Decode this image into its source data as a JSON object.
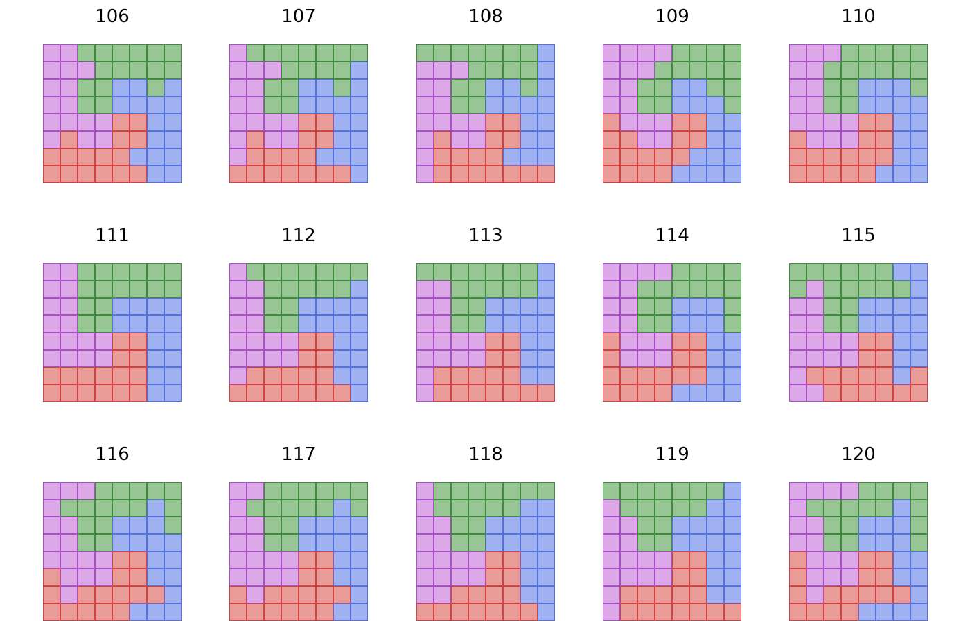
{
  "colors": {
    "P": {
      "fill": "#DDA8E8",
      "stroke": "#A84FC8"
    },
    "G": {
      "fill": "#97C593",
      "stroke": "#3F8A3C"
    },
    "B": {
      "fill": "#A0B1F2",
      "stroke": "#5570E0"
    },
    "R": {
      "fill": "#E89B97",
      "stroke": "#D24040"
    }
  },
  "panels": [
    {
      "title": "106",
      "grid": [
        "PPGGGGGG",
        "PPPGGGGG",
        "PPGGBBGB",
        "PPGGBBBB",
        "PPPPRRBB",
        "PRPPRRBB",
        "RRRRRBBB",
        "RRRRRRBB"
      ]
    },
    {
      "title": "107",
      "grid": [
        "PGGGGGGG",
        "PPPGGGGB",
        "PPGGBBGB",
        "PPGGBBBB",
        "PPPPRRBB",
        "PRPPRRBB",
        "PRRRRBBB",
        "RRRRRRRB"
      ]
    },
    {
      "title": "108",
      "grid": [
        "GGGGGGGB",
        "PPPGGGGB",
        "PPGGBBGB",
        "PPGGBBBB",
        "PPPPRRBB",
        "PRPPRRBB",
        "PRRRRBBB",
        "PRRRRRRR"
      ]
    },
    {
      "title": "109",
      "grid": [
        "PPPPGGGG",
        "PPPGGGGG",
        "PPGGBBGG",
        "PPGGBBBG",
        "RPPPRRBB",
        "RRPPRRBB",
        "RRRRRBBB",
        "RRRRBBBB"
      ]
    },
    {
      "title": "110",
      "grid": [
        "PPPGGGGG",
        "PPGGGGGG",
        "PPGGBBBG",
        "PPGGBBBB",
        "PPPPRRBB",
        "RPPPRRBB",
        "RRRRRRBB",
        "RRRRRBBB"
      ]
    },
    {
      "title": "111",
      "grid": [
        "PPGGGGGG",
        "PPGGGGGG",
        "PPGGBBBB",
        "PPGGBBBB",
        "PPPPRRBB",
        "PPPPRRBB",
        "RRRRRRBB",
        "RRRRRRBB"
      ]
    },
    {
      "title": "112",
      "grid": [
        "PGGGGGGG",
        "PPGGGGGB",
        "PPGGBBBB",
        "PPGGBBBB",
        "PPPPRRBB",
        "PPPPRRBB",
        "PRRRRRBB",
        "RRRRRRRB"
      ]
    },
    {
      "title": "113",
      "grid": [
        "GGGGGGGB",
        "PPGGGGGB",
        "PPGGBBBB",
        "PPGGBBBB",
        "PPPPRRBB",
        "PPPPRRBB",
        "PRRRRRBB",
        "PRRRRRRR"
      ]
    },
    {
      "title": "114",
      "grid": [
        "PPPPGGGG",
        "PPGGGGGG",
        "PPGGBBBG",
        "PPGGBBBG",
        "RPPPRRBB",
        "RPPPRRBB",
        "RRRRRRBB",
        "RRRRBBBB"
      ]
    },
    {
      "title": "115",
      "grid": [
        "GGGGGGBB",
        "GPGGGGGB",
        "PPGGBBBB",
        "PPGGBBBB",
        "PPPPRRBB",
        "PPPPRRBB",
        "PRRRRRBR",
        "PPRRRRRR"
      ]
    },
    {
      "title": "116",
      "grid": [
        "PPPGGGGG",
        "PGGGGGBG",
        "PPGGBBBG",
        "PPGGBBBB",
        "PPPPRRBB",
        "RPPPRRBB",
        "RPRRRRRB",
        "RRRRRBBB"
      ]
    },
    {
      "title": "117",
      "grid": [
        "PPGGGGGG",
        "PGGGGGBG",
        "PPGGBBBB",
        "PPGGBBBB",
        "PPPPRRBB",
        "PPPPRRBB",
        "RPRRRRRB",
        "RRRRRRBB"
      ]
    },
    {
      "title": "118",
      "grid": [
        "PGGGGGGG",
        "PGGGGGBB",
        "PPGGBBBB",
        "PPGGBBBB",
        "PPPPRRBB",
        "PPPPRRBB",
        "PPRRRRBB",
        "RRRRRRRB"
      ]
    },
    {
      "title": "119",
      "grid": [
        "GGGGGGGB",
        "PGGGGGBB",
        "PPGGBBBB",
        "PPGGBBBB",
        "PPPPRRBB",
        "PPPPRRBB",
        "PRRRRRBB",
        "PRRRRRRR"
      ]
    },
    {
      "title": "120",
      "grid": [
        "PPPPGGGG",
        "PGGGGGBG",
        "PPGGBBBG",
        "PPGGBBBG",
        "RPPPRRBB",
        "RPPPRRBB",
        "RPRRRRRB",
        "RRRRBBBB"
      ]
    }
  ]
}
